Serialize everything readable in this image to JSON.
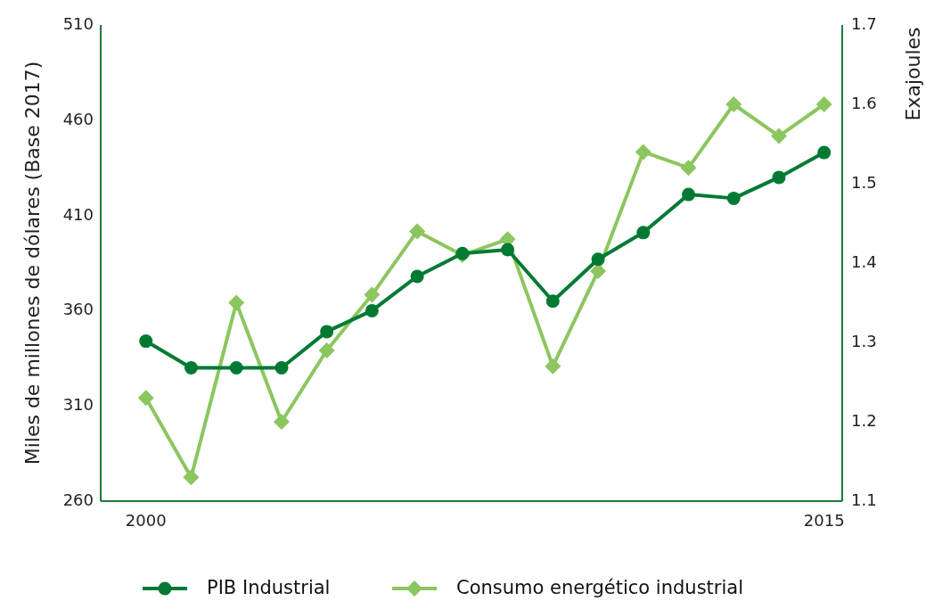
{
  "chart_data": {
    "type": "line",
    "ylabel": "Miles de millones de dólares (Base 2017)",
    "y2label": "Exajoules",
    "x": [
      2000,
      2001,
      2002,
      2003,
      2004,
      2005,
      2006,
      2007,
      2008,
      2009,
      2010,
      2011,
      2012,
      2013,
      2014,
      2015
    ],
    "xlim": [
      1999,
      2015.4
    ],
    "xticks": [
      2000,
      2015
    ],
    "ylim": [
      260,
      510
    ],
    "yticks": [
      260,
      310,
      360,
      410,
      460,
      510
    ],
    "y2lim": [
      1.1,
      1.7
    ],
    "y2ticks": [
      {
        "value": 1.1,
        "label": "1.1"
      },
      {
        "value": 1.2,
        "label": "1.2"
      },
      {
        "value": 1.3,
        "label": "1.3"
      },
      {
        "value": 1.4,
        "label": "1.4"
      },
      {
        "value": 1.5,
        "label": "1.5"
      },
      {
        "value": 1.6,
        "label": "1.6"
      },
      {
        "value": 1.7,
        "label": "1.7"
      }
    ],
    "series": [
      {
        "name": "PIB Industrial",
        "color": "#007a33",
        "marker": "circle",
        "values": [
          344,
          330,
          330,
          330,
          349,
          360,
          378,
          390,
          392,
          365,
          387,
          401,
          421,
          419,
          430,
          443
        ]
      },
      {
        "name": "Consumo energético industrial",
        "color": "#8cc65f",
        "marker": "diamond",
        "axis": "y2",
        "values": [
          1.23,
          1.13,
          1.35,
          1.2,
          1.29,
          1.36,
          1.44,
          1.41,
          1.43,
          1.27,
          1.39,
          1.54,
          1.52,
          1.6,
          1.56,
          1.6
        ]
      }
    ],
    "grid": false,
    "legend": "bottom"
  }
}
